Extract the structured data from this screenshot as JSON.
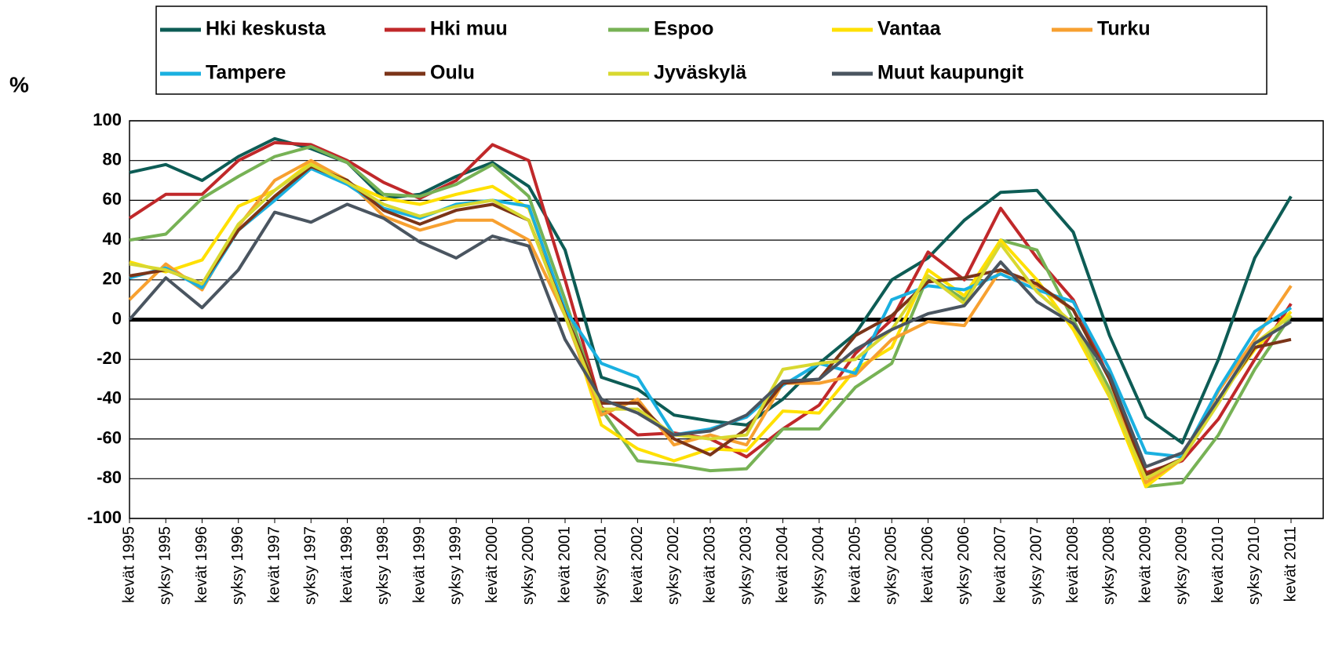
{
  "chart_data": {
    "type": "line",
    "ylabel": "%",
    "categories": [
      "kevät 1995",
      "syksy 1995",
      "kevät 1996",
      "syksy 1996",
      "kevät 1997",
      "syksy 1997",
      "kevät 1998",
      "syksy 1998",
      "kevät 1999",
      "syksy 1999",
      "kevät 2000",
      "syksy 2000",
      "kevät 2001",
      "syksy 2001",
      "kevät 2002",
      "syksy 2002",
      "kevät 2003",
      "syksy 2003",
      "kevät 2004",
      "syksy 2004",
      "kevät 2005",
      "syksy 2005",
      "kevät 2006",
      "syksy 2006",
      "kevät 2007",
      "syksy 2007",
      "kevät 2008",
      "syksy 2008",
      "kevät 2009",
      "syksy 2009",
      "kevät 2010",
      "syksy 2010",
      "kevät 2011"
    ],
    "ylim": [
      -100,
      100
    ],
    "yticks": [
      -100,
      -80,
      -60,
      -40,
      -20,
      0,
      20,
      40,
      60,
      80,
      100
    ],
    "grid": true,
    "legend": "top",
    "series": [
      {
        "name": "Hki keskusta",
        "color": "#0d5c55",
        "values": [
          74,
          78,
          70,
          82,
          91,
          86,
          79,
          61,
          63,
          72,
          79,
          67,
          35,
          -29,
          -35,
          -48,
          -51,
          -53,
          -40,
          -22,
          -7,
          20,
          31,
          50,
          64,
          65,
          44,
          -8,
          -49,
          -62,
          -20,
          31,
          62
        ]
      },
      {
        "name": "Hki muu",
        "color": "#c0282a",
        "values": [
          51,
          63,
          63,
          80,
          89,
          88,
          80,
          69,
          61,
          70,
          88,
          80,
          20,
          -44,
          -58,
          -57,
          -60,
          -69,
          -55,
          -43,
          -17,
          0,
          34,
          20,
          56,
          31,
          10,
          -30,
          -77,
          -71,
          -50,
          -20,
          8
        ]
      },
      {
        "name": "Espoo",
        "color": "#77b255",
        "values": [
          40,
          43,
          61,
          72,
          82,
          87,
          79,
          63,
          62,
          68,
          78,
          62,
          10,
          -45,
          -71,
          -73,
          -76,
          -75,
          -55,
          -55,
          -34,
          -22,
          22,
          10,
          40,
          35,
          0,
          -35,
          -84,
          -82,
          -58,
          -25,
          2
        ]
      },
      {
        "name": "Vantaa",
        "color": "#ffe000",
        "values": [
          29,
          24,
          30,
          57,
          65,
          79,
          69,
          61,
          58,
          63,
          67,
          56,
          5,
          -53,
          -65,
          -71,
          -65,
          -66,
          -46,
          -47,
          -25,
          -14,
          25,
          12,
          40,
          20,
          -5,
          -39,
          -84,
          -70,
          -40,
          -15,
          4
        ]
      },
      {
        "name": "Turku",
        "color": "#f7a030",
        "values": [
          10,
          28,
          15,
          47,
          70,
          80,
          70,
          52,
          45,
          50,
          50,
          40,
          2,
          -48,
          -40,
          -63,
          -58,
          -63,
          -32,
          -32,
          -28,
          -10,
          -1,
          -3,
          25,
          17,
          5,
          -30,
          -82,
          -70,
          -36,
          -10,
          17
        ]
      },
      {
        "name": "Tampere",
        "color": "#1ab0e0",
        "values": [
          21,
          26,
          16,
          45,
          60,
          76,
          68,
          56,
          51,
          58,
          60,
          57,
          5,
          -22,
          -29,
          -58,
          -55,
          -49,
          -33,
          -22,
          -27,
          10,
          17,
          15,
          23,
          15,
          9,
          -25,
          -67,
          -69,
          -35,
          -6,
          6
        ]
      },
      {
        "name": "Oulu",
        "color": "#7b3418",
        "values": [
          22,
          25,
          18,
          45,
          62,
          77,
          70,
          55,
          48,
          55,
          58,
          50,
          3,
          -42,
          -42,
          -60,
          -68,
          -55,
          -32,
          -30,
          -8,
          2,
          19,
          21,
          25,
          18,
          5,
          -30,
          -78,
          -70,
          -40,
          -14,
          -10
        ]
      },
      {
        "name": "Jyväskylä",
        "color": "#d8d830",
        "values": [
          28,
          25,
          18,
          48,
          65,
          78,
          69,
          58,
          52,
          57,
          60,
          50,
          2,
          -45,
          -45,
          -58,
          -60,
          -58,
          -25,
          -22,
          -20,
          -5,
          22,
          8,
          38,
          14,
          -2,
          -38,
          -80,
          -70,
          -42,
          -12,
          2
        ]
      },
      {
        "name": "Muut kaupungit",
        "color": "#4a5560",
        "values": [
          0,
          21,
          6,
          25,
          54,
          49,
          58,
          51,
          39,
          31,
          42,
          37,
          -10,
          -40,
          -47,
          -58,
          -56,
          -48,
          -31,
          -30,
          -15,
          -5,
          3,
          7,
          29,
          9,
          -2,
          -28,
          -74,
          -67,
          -40,
          -12,
          -1
        ]
      }
    ]
  }
}
